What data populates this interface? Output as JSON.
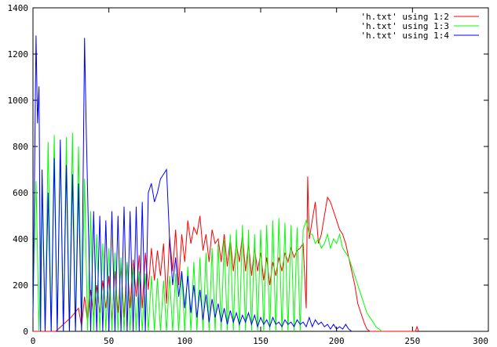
{
  "chart_data": {
    "type": "line",
    "title": "",
    "xlabel": "",
    "ylabel": "",
    "xlim": [
      0,
      300
    ],
    "ylim": [
      0,
      1400
    ],
    "x_ticks": [
      0,
      50,
      100,
      150,
      200,
      250,
      300
    ],
    "y_ticks": [
      0,
      200,
      400,
      600,
      800,
      1000,
      1200,
      1400
    ],
    "grid": false,
    "legend_position": "top-right",
    "series": [
      {
        "name": "'h.txt' using 1:2",
        "color": "#ff0000",
        "x": [
          0,
          15,
          20,
          25,
          30,
          32,
          34,
          36,
          38,
          40,
          42,
          44,
          46,
          48,
          50,
          52,
          54,
          56,
          58,
          60,
          62,
          64,
          66,
          68,
          70,
          72,
          74,
          76,
          78,
          80,
          82,
          84,
          86,
          88,
          90,
          92,
          94,
          96,
          98,
          100,
          102,
          104,
          106,
          108,
          110,
          112,
          114,
          116,
          118,
          120,
          122,
          124,
          126,
          128,
          130,
          132,
          134,
          136,
          138,
          140,
          142,
          144,
          146,
          148,
          150,
          152,
          154,
          156,
          158,
          160,
          162,
          164,
          166,
          168,
          170,
          172,
          174,
          176,
          178,
          180,
          181,
          182,
          184,
          186,
          188,
          190,
          192,
          194,
          196,
          198,
          200,
          202,
          204,
          206,
          208,
          210,
          212,
          214,
          216,
          218,
          220,
          222,
          225,
          230,
          240,
          252,
          253,
          254
        ],
        "values": [
          0,
          0,
          30,
          60,
          100,
          20,
          150,
          40,
          180,
          60,
          200,
          80,
          220,
          100,
          240,
          40,
          260,
          80,
          280,
          60,
          300,
          100,
          310,
          150,
          330,
          100,
          340,
          180,
          360,
          220,
          350,
          240,
          380,
          120,
          410,
          260,
          440,
          200,
          420,
          300,
          480,
          380,
          450,
          420,
          500,
          350,
          420,
          300,
          440,
          380,
          400,
          300,
          420,
          280,
          400,
          260,
          380,
          300,
          420,
          260,
          380,
          240,
          360,
          260,
          340,
          220,
          320,
          200,
          300,
          240,
          320,
          260,
          340,
          300,
          360,
          320,
          350,
          360,
          380,
          100,
          670,
          400,
          480,
          560,
          380,
          420,
          500,
          580,
          560,
          520,
          480,
          440,
          420,
          380,
          320,
          260,
          200,
          120,
          80,
          40,
          10,
          0,
          0,
          0,
          0,
          0,
          20,
          0
        ]
      },
      {
        "name": "'h.txt' using 1:3",
        "color": "#00ff00",
        "x": [
          0,
          2,
          4,
          6,
          8,
          10,
          12,
          14,
          16,
          18,
          20,
          22,
          24,
          26,
          28,
          30,
          32,
          34,
          36,
          38,
          40,
          42,
          44,
          46,
          48,
          50,
          52,
          54,
          56,
          58,
          60,
          62,
          64,
          66,
          68,
          70,
          72,
          74,
          76,
          78,
          80,
          82,
          84,
          86,
          88,
          90,
          92,
          94,
          96,
          98,
          100,
          102,
          104,
          106,
          108,
          110,
          112,
          114,
          116,
          118,
          120,
          122,
          124,
          126,
          128,
          130,
          132,
          134,
          136,
          138,
          140,
          142,
          144,
          146,
          148,
          150,
          152,
          154,
          156,
          158,
          160,
          162,
          164,
          166,
          168,
          170,
          172,
          174,
          176,
          178,
          180,
          182,
          184,
          186,
          188,
          190,
          192,
          194,
          196,
          198,
          200,
          202,
          204,
          206,
          208,
          210,
          212,
          214,
          216,
          218,
          220,
          222,
          224,
          226,
          228,
          230
        ],
        "values": [
          100,
          650,
          0,
          620,
          0,
          820,
          0,
          850,
          0,
          780,
          0,
          840,
          0,
          860,
          0,
          800,
          0,
          660,
          0,
          520,
          0,
          420,
          0,
          380,
          0,
          360,
          0,
          340,
          0,
          320,
          0,
          300,
          0,
          280,
          0,
          260,
          0,
          250,
          0,
          240,
          0,
          230,
          0,
          220,
          0,
          240,
          0,
          250,
          0,
          260,
          0,
          280,
          0,
          300,
          0,
          320,
          0,
          340,
          0,
          360,
          0,
          380,
          0,
          400,
          0,
          420,
          0,
          440,
          0,
          460,
          0,
          440,
          0,
          420,
          0,
          440,
          0,
          460,
          0,
          480,
          0,
          490,
          0,
          470,
          0,
          460,
          0,
          450,
          0,
          440,
          480,
          420,
          420,
          380,
          400,
          360,
          380,
          420,
          360,
          400,
          380,
          420,
          360,
          340,
          320,
          280,
          240,
          200,
          160,
          120,
          80,
          60,
          40,
          20,
          10,
          0
        ]
      },
      {
        "name": "'h.txt' using 1:4",
        "color": "#0000ff",
        "x": [
          0,
          2,
          3,
          4,
          5,
          6,
          8,
          10,
          12,
          14,
          16,
          18,
          20,
          22,
          24,
          26,
          28,
          30,
          32,
          34,
          35,
          36,
          38,
          40,
          42,
          44,
          46,
          48,
          50,
          52,
          54,
          56,
          58,
          60,
          62,
          64,
          66,
          68,
          70,
          72,
          74,
          76,
          78,
          80,
          82,
          84,
          86,
          88,
          90,
          92,
          94,
          96,
          98,
          100,
          102,
          104,
          106,
          108,
          110,
          112,
          114,
          116,
          118,
          120,
          122,
          124,
          126,
          128,
          130,
          132,
          134,
          136,
          138,
          140,
          142,
          144,
          146,
          148,
          150,
          152,
          154,
          156,
          158,
          160,
          162,
          164,
          166,
          168,
          170,
          172,
          174,
          176,
          178,
          180,
          182,
          184,
          186,
          188,
          190,
          192,
          194,
          196,
          198,
          200,
          202,
          204,
          206,
          208,
          210
        ],
        "values": [
          60,
          1280,
          900,
          1060,
          0,
          700,
          0,
          600,
          0,
          750,
          0,
          830,
          0,
          720,
          0,
          680,
          0,
          640,
          0,
          1270,
          900,
          600,
          0,
          520,
          0,
          500,
          0,
          480,
          0,
          520,
          0,
          500,
          0,
          540,
          0,
          520,
          0,
          540,
          0,
          560,
          0,
          600,
          640,
          560,
          600,
          660,
          680,
          700,
          400,
          200,
          320,
          150,
          260,
          100,
          240,
          80,
          200,
          60,
          180,
          50,
          160,
          40,
          140,
          60,
          120,
          40,
          100,
          30,
          90,
          40,
          80,
          30,
          70,
          40,
          80,
          30,
          70,
          20,
          60,
          30,
          50,
          20,
          60,
          30,
          40,
          20,
          50,
          30,
          40,
          20,
          50,
          30,
          40,
          20,
          60,
          20,
          50,
          30,
          40,
          20,
          30,
          10,
          30,
          10,
          20,
          10,
          30,
          10,
          0
        ]
      }
    ]
  }
}
